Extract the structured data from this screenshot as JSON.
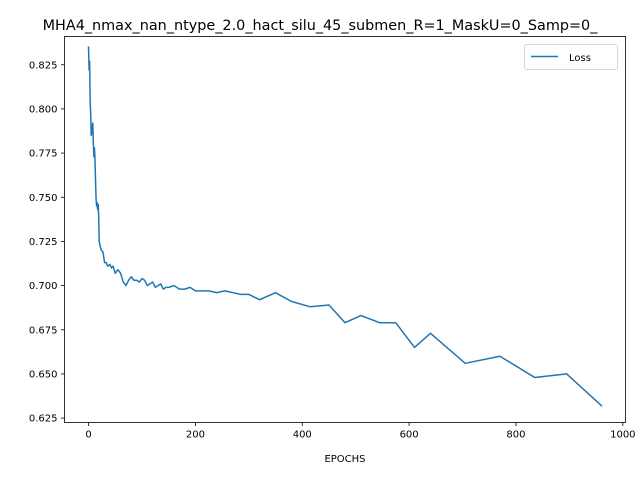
{
  "chart_data": {
    "type": "line",
    "title": "MHA4_nmax_nan_ntype_2.0_hact_silu_45_submen_R=1_MaskU=0_Samp=0_",
    "xlabel": "EPOCHS",
    "ylabel": "",
    "xlim": [
      -45,
      1005
    ],
    "ylim": [
      0.6225,
      0.841
    ],
    "xticks": [
      0,
      200,
      400,
      600,
      800,
      1000
    ],
    "xtick_labels": [
      "0",
      "200",
      "400",
      "600",
      "800",
      "1000"
    ],
    "yticks": [
      0.625,
      0.65,
      0.675,
      0.7,
      0.725,
      0.75,
      0.775,
      0.8,
      0.825
    ],
    "ytick_labels": [
      "0.625",
      "0.650",
      "0.675",
      "0.700",
      "0.725",
      "0.750",
      "0.775",
      "0.800",
      "0.825"
    ],
    "grid": false,
    "legend_position": "top-right",
    "series": [
      {
        "name": "Loss",
        "color": "#1f77b4",
        "x": [
          0,
          1,
          2,
          3,
          4,
          5,
          6,
          7,
          8,
          9,
          10,
          11,
          12,
          13,
          14,
          15,
          16,
          17,
          18,
          19,
          20,
          22,
          24,
          27,
          30,
          33,
          36,
          40,
          43,
          46,
          50,
          55,
          60,
          65,
          70,
          75,
          80,
          85,
          90,
          95,
          100,
          105,
          110,
          115,
          120,
          125,
          130,
          135,
          140,
          145,
          150,
          160,
          170,
          180,
          190,
          200,
          210,
          225,
          240,
          255,
          270,
          285,
          300,
          320,
          350,
          380,
          415,
          450,
          480,
          510,
          545,
          575,
          610,
          640,
          705,
          770,
          835,
          895,
          960
        ],
        "y": [
          0.835,
          0.822,
          0.827,
          0.805,
          0.797,
          0.785,
          0.791,
          0.786,
          0.792,
          0.78,
          0.773,
          0.778,
          0.772,
          0.76,
          0.75,
          0.745,
          0.747,
          0.743,
          0.746,
          0.74,
          0.725,
          0.722,
          0.72,
          0.719,
          0.713,
          0.713,
          0.711,
          0.712,
          0.71,
          0.711,
          0.707,
          0.709,
          0.707,
          0.702,
          0.7,
          0.703,
          0.705,
          0.703,
          0.703,
          0.702,
          0.704,
          0.703,
          0.7,
          0.701,
          0.702,
          0.699,
          0.7,
          0.701,
          0.698,
          0.699,
          0.699,
          0.7,
          0.698,
          0.698,
          0.699,
          0.697,
          0.697,
          0.697,
          0.696,
          0.697,
          0.696,
          0.695,
          0.695,
          0.692,
          0.696,
          0.691,
          0.688,
          0.689,
          0.679,
          0.683,
          0.679,
          0.679,
          0.665,
          0.673,
          0.656,
          0.66,
          0.648,
          0.65,
          0.632
        ]
      }
    ]
  }
}
